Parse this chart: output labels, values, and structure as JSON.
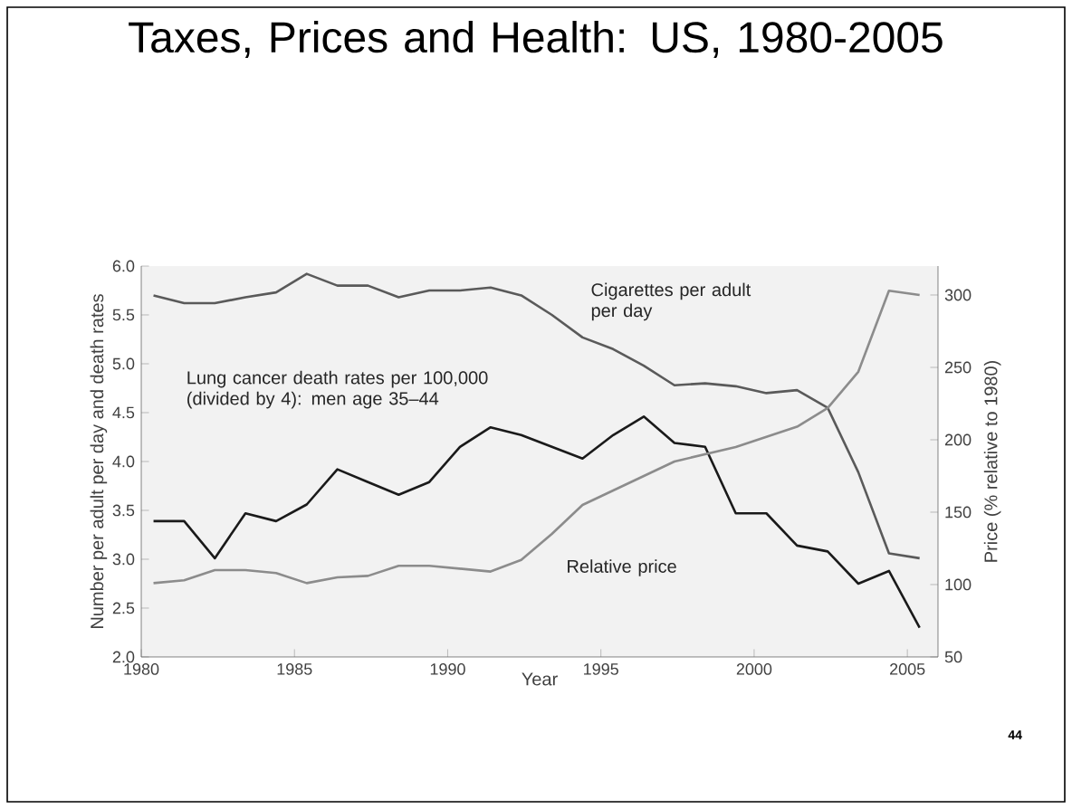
{
  "chart_data": {
    "type": "line",
    "title": "Taxes, Prices and Health: US, 1980-2005",
    "xlabel": "Year",
    "ylabel": "Number per adult per day and death rates",
    "y2label": "Price (% relative to 1980)",
    "x": [
      1980.4,
      1981.4,
      1982.4,
      1983.4,
      1984.4,
      1985.4,
      1986.4,
      1987.4,
      1988.4,
      1989.4,
      1990.4,
      1991.4,
      1992.4,
      1993.4,
      1994.4,
      1995.4,
      1996.4,
      1997.4,
      1998.4,
      1999.4,
      2000.4,
      2001.4,
      2002.4,
      2003.4,
      2004.4,
      2005.4
    ],
    "series": [
      {
        "name": "Cigarettes per adult per day",
        "color": "#5a5a5a",
        "values": [
          5.7,
          5.62,
          5.62,
          5.68,
          5.73,
          5.92,
          5.8,
          5.8,
          5.68,
          5.75,
          5.75,
          5.78,
          5.7,
          5.5,
          5.27,
          5.15,
          4.98,
          4.78,
          4.8,
          4.77,
          4.7,
          4.73,
          4.55,
          3.89,
          3.06,
          3.01
        ]
      },
      {
        "name": "Lung cancer death rates per 100,000 (divided by 4): men age 35–44",
        "color": "#1a1a1a",
        "values": [
          3.39,
          3.39,
          3.01,
          3.47,
          3.39,
          3.56,
          3.92,
          3.79,
          3.66,
          3.79,
          4.15,
          4.35,
          4.27,
          4.15,
          4.03,
          4.27,
          4.46,
          4.19,
          4.15,
          3.47,
          3.47,
          3.14,
          3.08,
          2.75,
          2.88,
          2.3
        ]
      },
      {
        "name": "Relative price",
        "color": "#8c8c8c",
        "axis": "y2",
        "values": [
          101,
          103,
          110,
          110,
          108,
          101,
          105,
          106,
          113,
          113,
          111,
          109,
          117,
          135,
          155,
          165,
          175,
          185,
          190,
          195,
          202,
          209,
          222,
          247,
          303,
          300
        ]
      }
    ],
    "xlim": [
      1980,
      2006
    ],
    "xticks": [
      1980,
      1985,
      1990,
      1995,
      2000,
      2005
    ],
    "ylim": [
      2,
      6
    ],
    "yticks": [
      {
        "value": 2,
        "label": "2.0"
      },
      {
        "value": 2.5,
        "label": "2.5"
      },
      {
        "value": 3,
        "label": "3.0"
      },
      {
        "value": 3.5,
        "label": "3.5"
      },
      {
        "value": 4,
        "label": "4.0"
      },
      {
        "value": 4.5,
        "label": "4.5"
      },
      {
        "value": 5,
        "label": "5.0"
      },
      {
        "value": 5.5,
        "label": "5.5"
      },
      {
        "value": 6,
        "label": "6.0"
      }
    ],
    "y2lim": [
      50,
      320
    ],
    "y2ticks": [
      50,
      100,
      150,
      200,
      250,
      300
    ],
    "annotations": [
      "44"
    ]
  }
}
